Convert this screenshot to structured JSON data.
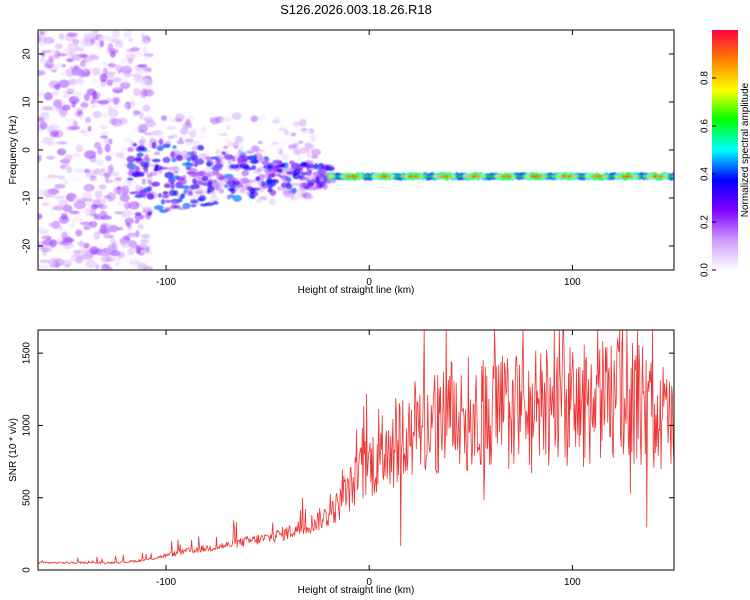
{
  "title": "S126.2026.003.18.26.R18",
  "spectrogram": {
    "type": "heatmap",
    "xlabel": "Height of straight line (km)",
    "ylabel": "Frequency (Hz)",
    "xlim": [
      -163,
      150
    ],
    "ylim": [
      -25,
      25
    ],
    "xticks": [
      -100,
      0,
      100
    ],
    "yticks": [
      20,
      10,
      0,
      -10,
      -20
    ],
    "tone_frequency_hz": -5.5,
    "colorbar": {
      "label": "Normalized spectral amplitude",
      "range": [
        0,
        1
      ],
      "ticks": [
        "0.0",
        "0.2",
        "0.4",
        "0.6",
        "0.8"
      ],
      "colors": [
        "#ffffff",
        "#cc99ff",
        "#8000ff",
        "#0000ff",
        "#00ffff",
        "#00ff00",
        "#ffff00",
        "#ff8000",
        "#ff0040"
      ]
    }
  },
  "snr": {
    "type": "line",
    "xlabel": "Height of straight line (km)",
    "ylabel": "SNR (10 * v/v)",
    "xlim": [
      -163,
      150
    ],
    "ylim": [
      0,
      1660
    ],
    "xticks": [
      -100,
      0,
      100
    ],
    "yticks": [
      0,
      500,
      1000,
      1500
    ],
    "color": "#ee3333",
    "envelope_x": [
      -163,
      -130,
      -120,
      -110,
      -100,
      -90,
      -80,
      -70,
      -60,
      -50,
      -40,
      -30,
      -20,
      -15,
      -10,
      -5,
      0,
      5,
      10,
      20,
      30,
      40,
      50,
      60,
      70,
      80,
      90,
      100,
      110,
      120,
      130,
      140,
      150
    ],
    "envelope_y": [
      50,
      50,
      55,
      70,
      100,
      130,
      150,
      170,
      200,
      220,
      260,
      310,
      380,
      450,
      550,
      650,
      730,
      780,
      860,
      950,
      1020,
      1060,
      1080,
      1090,
      1100,
      1110,
      1120,
      1130,
      1150,
      1180,
      1170,
      1100,
      1000
    ]
  }
}
